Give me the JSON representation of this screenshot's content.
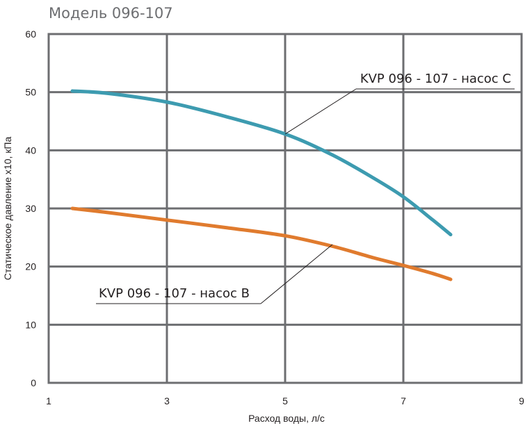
{
  "chart_data": {
    "type": "line",
    "title": "Модель 096-107",
    "xlabel": "Расход воды, л/с",
    "ylabel": "Статическое давление х10, кПа",
    "xlim": [
      1,
      9
    ],
    "ylim": [
      0,
      60
    ],
    "x_ticks": [
      "1",
      "3",
      "5",
      "7",
      "9"
    ],
    "y_ticks": [
      "0",
      "10",
      "20",
      "30",
      "40",
      "50",
      "60"
    ],
    "grid": true,
    "series": [
      {
        "name": "KVP 096 - 107 - насос C",
        "color": "#3d9bb0",
        "x": [
          1.4,
          2.0,
          3.0,
          4.0,
          5.0,
          5.8,
          6.5,
          7.0,
          7.5,
          7.8
        ],
        "y": [
          50.2,
          49.8,
          48.3,
          45.8,
          42.8,
          39.2,
          35.2,
          32.0,
          28.0,
          25.5
        ]
      },
      {
        "name": "KVP 096 - 107 - насос B",
        "color": "#e07b2e",
        "x": [
          1.4,
          2.0,
          3.0,
          4.0,
          5.0,
          5.8,
          6.5,
          7.0,
          7.5,
          7.8
        ],
        "y": [
          30.0,
          29.3,
          28.0,
          26.7,
          25.3,
          23.5,
          21.5,
          20.2,
          18.8,
          17.8
        ]
      }
    ],
    "annotations": [
      {
        "text": "KVP 096 - 107 - насос C",
        "series": 0,
        "point_x": 5.0,
        "point_y": 42.8
      },
      {
        "text": "KVP 096 - 107 - насос B",
        "series": 1,
        "point_x": 5.8,
        "point_y": 23.8
      }
    ]
  }
}
